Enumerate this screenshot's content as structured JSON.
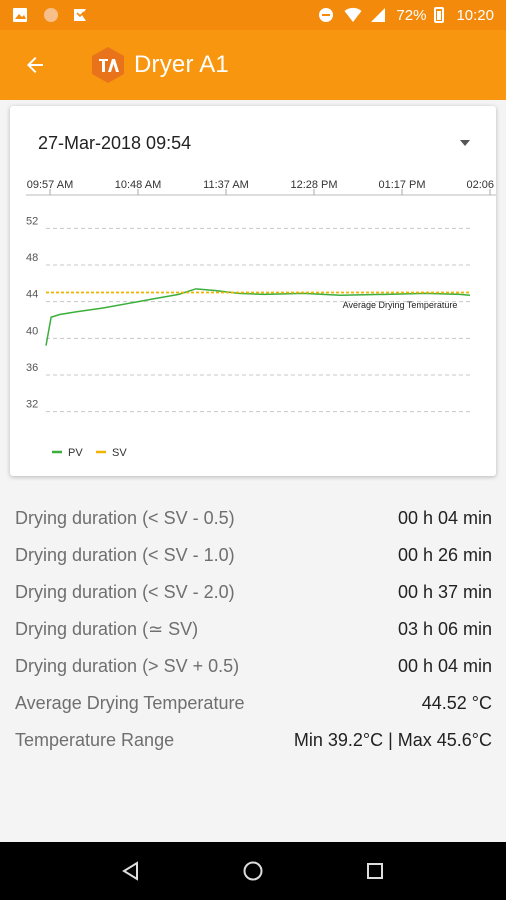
{
  "status_bar": {
    "battery": "72%",
    "time": "10:20"
  },
  "app_bar": {
    "title": "Dryer A1"
  },
  "date_selector": {
    "value": "27-Mar-2018 09:54"
  },
  "chart_data": {
    "type": "line",
    "title": "",
    "xlabel": "",
    "ylabel": "",
    "x_tick_labels": [
      "09:57 AM",
      "10:48 AM",
      "11:37 AM",
      "12:28 PM",
      "01:17 PM",
      "02:06 PM"
    ],
    "y_ticks": [
      32,
      36,
      40,
      44,
      48,
      52
    ],
    "ylim": [
      30,
      54
    ],
    "grid": "dashed horizontal",
    "legend_placement": "bottom-left",
    "annotation": "Average Drying Temperature",
    "average_line": 44.52,
    "series": [
      {
        "name": "PV",
        "color": "#3cae3c",
        "x": [
          "09:57",
          "10:00",
          "10:05",
          "10:15",
          "10:30",
          "10:48",
          "11:00",
          "11:15",
          "11:25",
          "11:37",
          "11:50",
          "12:05",
          "12:28",
          "12:50",
          "13:17",
          "13:40",
          "14:00",
          "14:06"
        ],
        "values": [
          39.2,
          42.3,
          42.6,
          42.9,
          43.3,
          43.9,
          44.3,
          44.8,
          45.4,
          45.2,
          44.9,
          44.8,
          44.9,
          44.7,
          44.8,
          44.9,
          44.8,
          44.7
        ]
      },
      {
        "name": "SV",
        "color": "#f0b400",
        "x": [
          "09:57",
          "14:06"
        ],
        "values": [
          45,
          45
        ]
      }
    ]
  },
  "stats": [
    {
      "label": "Drying duration (< SV - 0.5)",
      "value": "00 h 04 min"
    },
    {
      "label": "Drying duration (< SV - 1.0)",
      "value": "00 h 26 min"
    },
    {
      "label": "Drying duration (< SV - 2.0)",
      "value": "00 h 37 min"
    },
    {
      "label": "Drying duration (≃ SV)",
      "value": "03 h 06 min"
    },
    {
      "label": "Drying duration (> SV + 0.5)",
      "value": "00 h 04 min"
    },
    {
      "label": "Average Drying Temperature",
      "value": "44.52 °C"
    },
    {
      "label": "Temperature Range",
      "value": "Min 39.2°C | Max 45.6°C"
    }
  ],
  "icons": {
    "back": "arrow-left-icon",
    "logo": "brand-hexagon-logo",
    "nav_back": "triangle-back-icon",
    "nav_home": "circle-home-icon",
    "nav_recents": "square-recents-icon"
  }
}
